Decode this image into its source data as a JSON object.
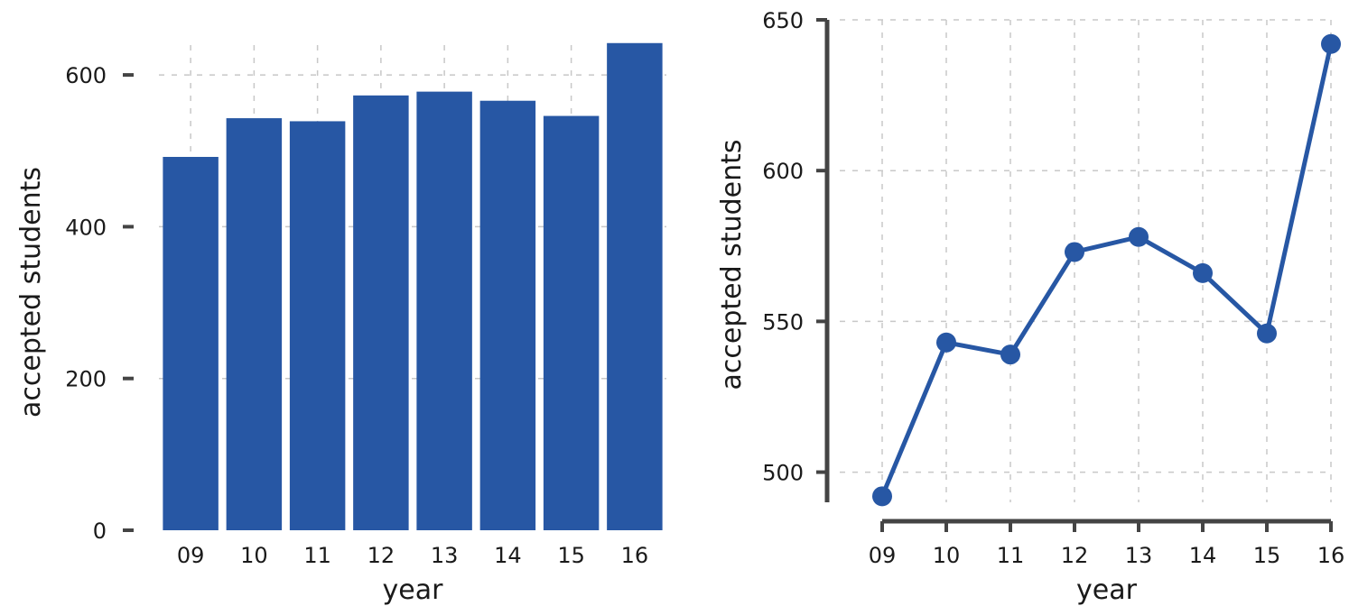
{
  "chart_data": [
    {
      "type": "bar",
      "categories": [
        "09",
        "10",
        "11",
        "12",
        "13",
        "14",
        "15",
        "16"
      ],
      "values": [
        492,
        543,
        539,
        573,
        578,
        566,
        546,
        642
      ],
      "xlabel": "year",
      "ylabel": "accepted students",
      "ylim": [
        0,
        675
      ],
      "yticks": [
        0,
        200,
        400,
        600
      ],
      "grid": true,
      "color": "#2757a4"
    },
    {
      "type": "line",
      "categories": [
        "09",
        "10",
        "11",
        "12",
        "13",
        "14",
        "15",
        "16"
      ],
      "values": [
        492,
        543,
        539,
        573,
        578,
        566,
        546,
        642
      ],
      "xlabel": "year",
      "ylabel": "accepted students",
      "ylim": [
        490,
        650
      ],
      "yticks": [
        500,
        550,
        600,
        650
      ],
      "grid": true,
      "markers": true,
      "color": "#2757a4"
    }
  ]
}
